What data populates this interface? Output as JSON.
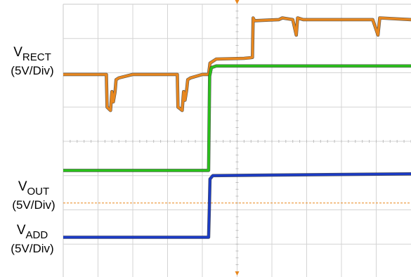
{
  "chart_data": {
    "type": "line",
    "title": "",
    "xlabel": "",
    "ylabel": "",
    "grid": true,
    "grid_divisions": {
      "x": 10,
      "y": 8
    },
    "x_range_div": [
      0,
      10
    ],
    "y_range_div": [
      0,
      8
    ],
    "channels": [
      {
        "name_main": "V",
        "name_sub": "RECT",
        "scale": "(5V/Div)",
        "color": "#e8871e",
        "level_marker_div": 2.05,
        "points": [
          [
            0.0,
            2.05
          ],
          [
            1.24,
            2.05
          ],
          [
            1.26,
            3.0
          ],
          [
            1.36,
            3.1
          ],
          [
            1.4,
            2.55
          ],
          [
            1.44,
            2.85
          ],
          [
            1.49,
            2.55
          ],
          [
            1.52,
            2.2
          ],
          [
            1.6,
            2.15
          ],
          [
            2.0,
            2.05
          ],
          [
            3.28,
            2.05
          ],
          [
            3.3,
            3.0
          ],
          [
            3.42,
            3.1
          ],
          [
            3.46,
            2.55
          ],
          [
            3.5,
            2.8
          ],
          [
            3.55,
            2.5
          ],
          [
            3.58,
            2.2
          ],
          [
            3.66,
            2.15
          ],
          [
            4.0,
            2.05
          ],
          [
            4.18,
            2.05
          ],
          [
            4.22,
            1.72
          ],
          [
            4.4,
            1.6
          ],
          [
            5.2,
            1.58
          ],
          [
            5.4,
            1.56
          ],
          [
            5.44,
            1.55
          ],
          [
            5.46,
            0.4
          ],
          [
            5.5,
            0.48
          ],
          [
            6.2,
            0.45
          ],
          [
            6.3,
            0.4
          ],
          [
            6.6,
            0.45
          ],
          [
            6.7,
            0.9
          ],
          [
            6.74,
            0.4
          ],
          [
            6.9,
            0.45
          ],
          [
            8.9,
            0.45
          ],
          [
            9.05,
            0.9
          ],
          [
            9.1,
            0.4
          ],
          [
            10.0,
            0.45
          ]
        ]
      },
      {
        "name_main": "V",
        "name_sub": "OUT",
        "scale": "(5V/Div)",
        "color": "#29c11a",
        "level_marker_div": 4.85,
        "points": [
          [
            0.0,
            4.85
          ],
          [
            4.18,
            4.85
          ],
          [
            4.21,
            2.1
          ],
          [
            4.26,
            1.85
          ],
          [
            4.4,
            1.8
          ],
          [
            10.0,
            1.8
          ]
        ]
      },
      {
        "name_main": "V",
        "name_sub": "ADD",
        "scale": "(5V/Div)",
        "color": "#1b3bc4",
        "level_marker_div": 6.8,
        "points": [
          [
            0.0,
            6.8
          ],
          [
            4.18,
            6.8
          ],
          [
            4.2,
            6.0
          ],
          [
            4.22,
            5.1
          ],
          [
            4.3,
            5.0
          ],
          [
            10.0,
            4.95
          ]
        ]
      }
    ],
    "trigger_level_div": 5.8
  },
  "colors": {
    "grid": "#d4d4d4",
    "trigger": "#e8871e",
    "marker": "#e8871e",
    "frame": "#c8c8c8"
  }
}
